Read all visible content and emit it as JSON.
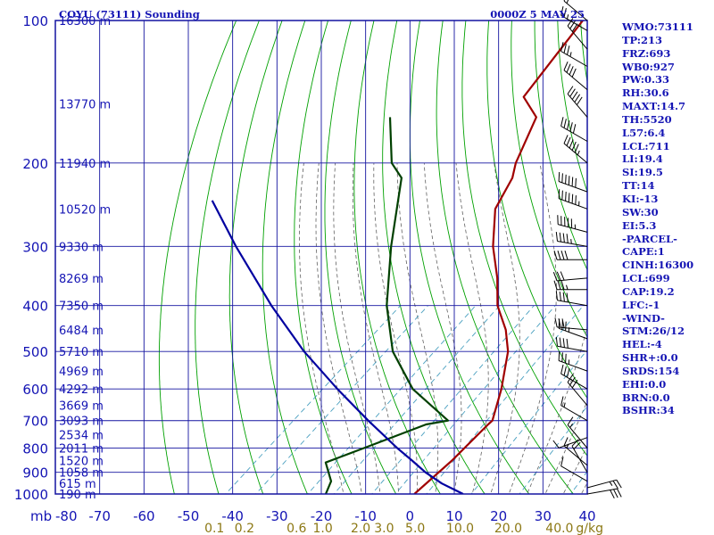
{
  "chart_data": {
    "type": "line",
    "title": "COYU (73111) Sounding",
    "valid_time": "0000Z  5 MAY 25",
    "pressure_ticks": [
      "100",
      "200",
      "300",
      "400",
      "500",
      "600",
      "700",
      "800",
      "900",
      "1000"
    ],
    "temperature_ticks": [
      "-80",
      "-70",
      "-60",
      "-50",
      "-40",
      "-30",
      "-20",
      "-10",
      "0",
      "10",
      "20",
      "30",
      "40"
    ],
    "temperature_unit_label": "mb",
    "mixing_ratio_ticks": [
      "0.1",
      "0.2",
      "0.6",
      "1.0",
      "2.0",
      "3.0",
      "5.0",
      "10.0",
      "20.0",
      "40.0"
    ],
    "mixing_ratio_unit_label": "g/kg",
    "x_range": [
      -80,
      40
    ],
    "y_range": [
      1000,
      100
    ],
    "y_scale": "log",
    "skew_deg_per_log10": 120,
    "height_labels": [
      {
        "p": 100,
        "label": "16300 m"
      },
      {
        "p": 150,
        "label": "13770 m"
      },
      {
        "p": 200,
        "label": "11940 m"
      },
      {
        "p": 250,
        "label": "10520 m"
      },
      {
        "p": 300,
        "label": "9330 m"
      },
      {
        "p": 350,
        "label": "8269 m"
      },
      {
        "p": 400,
        "label": "7350 m"
      },
      {
        "p": 450,
        "label": "6484 m"
      },
      {
        "p": 500,
        "label": "5710 m"
      },
      {
        "p": 550,
        "label": "4969 m"
      },
      {
        "p": 600,
        "label": "4292 m"
      },
      {
        "p": 650,
        "label": "3669 m"
      },
      {
        "p": 700,
        "label": "3093 m"
      },
      {
        "p": 750,
        "label": "2534 m"
      },
      {
        "p": 800,
        "label": "2011 m"
      },
      {
        "p": 850,
        "label": "1520 m"
      },
      {
        "p": 900,
        "label": "1058 m"
      },
      {
        "p": 950,
        "label": "615 m"
      },
      {
        "p": 1000,
        "label": "190 m"
      }
    ],
    "series": [
      {
        "color": "#a00000",
        "points": [
          {
            "p": 100,
            "t": -81
          },
          {
            "p": 145,
            "t": -75
          },
          {
            "p": 160,
            "t": -67
          },
          {
            "p": 200,
            "t": -60
          },
          {
            "p": 215,
            "t": -57
          },
          {
            "p": 250,
            "t": -53
          },
          {
            "p": 300,
            "t": -44
          },
          {
            "p": 350,
            "t": -35
          },
          {
            "p": 400,
            "t": -28
          },
          {
            "p": 450,
            "t": -20
          },
          {
            "p": 500,
            "t": -14
          },
          {
            "p": 600,
            "t": -6
          },
          {
            "p": 700,
            "t": 0
          },
          {
            "p": 713,
            "t": 0
          },
          {
            "p": 850,
            "t": 1
          },
          {
            "p": 1000,
            "t": 1
          }
        ]
      },
      {
        "color": "#004000",
        "points": [
          {
            "p": 160,
            "t": -100
          },
          {
            "p": 200,
            "t": -88
          },
          {
            "p": 215,
            "t": -82
          },
          {
            "p": 300,
            "t": -67
          },
          {
            "p": 400,
            "t": -53
          },
          {
            "p": 500,
            "t": -40
          },
          {
            "p": 600,
            "t": -26
          },
          {
            "p": 700,
            "t": -10
          },
          {
            "p": 713,
            "t": -14
          },
          {
            "p": 800,
            "t": -22
          },
          {
            "p": 858,
            "t": -27
          },
          {
            "p": 940,
            "t": -21
          },
          {
            "p": 1000,
            "t": -19
          }
        ]
      },
      {
        "color": "#0000a0",
        "points": [
          {
            "p": 1000,
            "t": 12
          },
          {
            "p": 950,
            "t": 4.5
          },
          {
            "p": 900,
            "t": -2
          },
          {
            "p": 850,
            "t": -8
          },
          {
            "p": 800,
            "t": -14.5
          },
          {
            "p": 700,
            "t": -28
          },
          {
            "p": 600,
            "t": -43
          },
          {
            "p": 500,
            "t": -60
          },
          {
            "p": 400,
            "t": -79
          },
          {
            "p": 300,
            "t": -102
          },
          {
            "p": 240,
            "t": -119
          }
        ]
      }
    ],
    "wind_barbs": [
      {
        "p": 1000,
        "dir": 80,
        "spd": 30
      },
      {
        "p": 970,
        "dir": 75,
        "spd": 25
      },
      {
        "p": 940,
        "dir": 300,
        "spd": 10
      },
      {
        "p": 900,
        "dir": 330,
        "spd": 20
      },
      {
        "p": 870,
        "dir": 310,
        "spd": 15
      },
      {
        "p": 800,
        "dir": 320,
        "spd": 15
      },
      {
        "p": 760,
        "dir": 250,
        "spd": 10
      },
      {
        "p": 700,
        "dir": 300,
        "spd": 15
      },
      {
        "p": 650,
        "dir": 320,
        "spd": 30
      },
      {
        "p": 600,
        "dir": 300,
        "spd": 30
      },
      {
        "p": 550,
        "dir": 290,
        "spd": 35
      },
      {
        "p": 500,
        "dir": 280,
        "spd": 40
      },
      {
        "p": 470,
        "dir": 290,
        "spd": 35
      },
      {
        "p": 450,
        "dir": 275,
        "spd": 30
      },
      {
        "p": 400,
        "dir": 280,
        "spd": 40
      },
      {
        "p": 370,
        "dir": 270,
        "spd": 35
      },
      {
        "p": 350,
        "dir": 265,
        "spd": 30
      },
      {
        "p": 320,
        "dir": 270,
        "spd": 40
      },
      {
        "p": 300,
        "dir": 280,
        "spd": 45
      },
      {
        "p": 280,
        "dir": 285,
        "spd": 55
      },
      {
        "p": 250,
        "dir": 290,
        "spd": 65
      },
      {
        "p": 230,
        "dir": 290,
        "spd": 60
      },
      {
        "p": 200,
        "dir": 310,
        "spd": 55
      },
      {
        "p": 180,
        "dir": 300,
        "spd": 50
      },
      {
        "p": 160,
        "dir": 320,
        "spd": 50
      },
      {
        "p": 140,
        "dir": 310,
        "spd": 40
      },
      {
        "p": 125,
        "dir": 300,
        "spd": 35
      },
      {
        "p": 115,
        "dir": 320,
        "spd": 30
      },
      {
        "p": 105,
        "dir": 300,
        "spd": 25
      },
      {
        "p": 100,
        "dir": 310,
        "spd": 20
      }
    ],
    "grid": true,
    "colors": {
      "isobar": "#1414a0",
      "isotherm": "#1414a0",
      "dry_adiabat": "#00a000",
      "moist_adiabat": "#606060",
      "mixing_ratio": "#4aa0c0"
    }
  },
  "indices": [
    "WMO:73111",
    "TP:213",
    "FRZ:693",
    "WB0:927",
    "PW:0.33",
    "RH:30.6",
    "MAXT:14.7",
    "TH:5520",
    "L57:6.4",
    "LCL:711",
    "LI:19.4",
    "SI:19.5",
    "TT:14",
    "KI:-13",
    "SW:30",
    "EI:5.3",
    "-PARCEL-",
    "CAPE:1",
    "CINH:16300",
    "LCL:699",
    "CAP:19.2",
    "LFC:-1",
    "-WIND-",
    "STM:26/12",
    "HEL:-4",
    "SHR+:0.0",
    "SRDS:154",
    "EHI:0.0",
    "BRN:0.0",
    "BSHR:34"
  ]
}
